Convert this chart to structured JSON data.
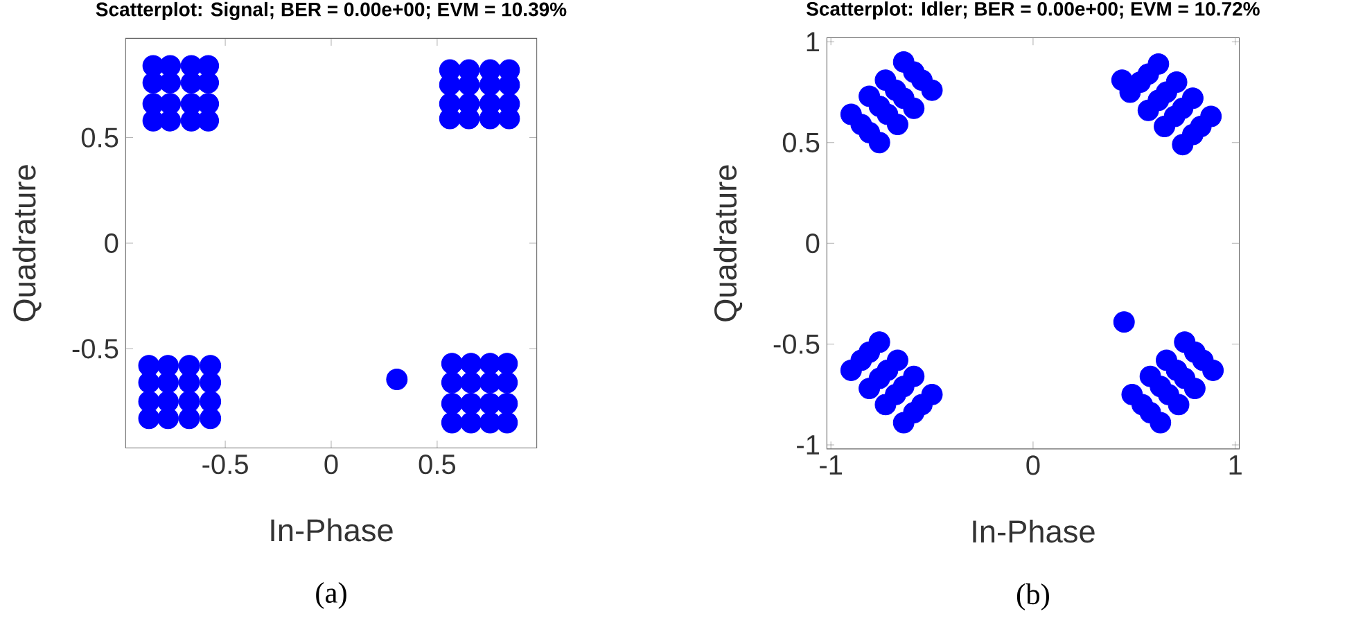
{
  "chart_data": [
    {
      "type": "scatter",
      "title": "Scatterplot: Signal; BER = 0.00e+00; EVM = 10.39%",
      "xlabel": "In-Phase",
      "ylabel": "Quadrature",
      "annotations": [
        "(a)"
      ],
      "xlim": [
        -0.97,
        0.97
      ],
      "ylim": [
        -0.97,
        0.97
      ],
      "xticks": [
        -0.5,
        0,
        0.5
      ],
      "yticks": [
        -0.5,
        0,
        0.5
      ],
      "series": [
        {
          "color": "#0000ff",
          "x": [
            -0.84,
            -0.76,
            -0.66,
            -0.58,
            -0.84,
            -0.76,
            -0.66,
            -0.58,
            -0.84,
            -0.76,
            -0.66,
            -0.58,
            -0.84,
            -0.76,
            -0.66,
            -0.58,
            0.56,
            0.65,
            0.75,
            0.84,
            0.56,
            0.65,
            0.75,
            0.84,
            0.56,
            0.65,
            0.75,
            0.84,
            0.56,
            0.65,
            0.75,
            0.84,
            -0.86,
            -0.77,
            -0.67,
            -0.57,
            -0.86,
            -0.77,
            -0.67,
            -0.57,
            -0.86,
            -0.77,
            -0.67,
            -0.57,
            -0.86,
            -0.77,
            -0.67,
            -0.57,
            0.57,
            0.66,
            0.75,
            0.83,
            0.57,
            0.66,
            0.75,
            0.83,
            0.57,
            0.66,
            0.75,
            0.83,
            0.57,
            0.66,
            0.75,
            0.83,
            0.31
          ],
          "values": [
            0.84,
            0.84,
            0.84,
            0.84,
            0.76,
            0.76,
            0.76,
            0.76,
            0.66,
            0.66,
            0.66,
            0.66,
            0.58,
            0.58,
            0.58,
            0.58,
            0.82,
            0.82,
            0.82,
            0.82,
            0.75,
            0.75,
            0.75,
            0.75,
            0.66,
            0.66,
            0.66,
            0.66,
            0.59,
            0.59,
            0.59,
            0.59,
            -0.58,
            -0.58,
            -0.58,
            -0.58,
            -0.66,
            -0.66,
            -0.66,
            -0.66,
            -0.75,
            -0.75,
            -0.75,
            -0.75,
            -0.83,
            -0.83,
            -0.83,
            -0.83,
            -0.57,
            -0.57,
            -0.57,
            -0.57,
            -0.66,
            -0.66,
            -0.66,
            -0.66,
            -0.76,
            -0.76,
            -0.76,
            -0.76,
            -0.85,
            -0.85,
            -0.85,
            -0.85,
            -0.645
          ]
        }
      ]
    },
    {
      "type": "scatter",
      "title": "Scatterplot: Idler; BER = 0.00e+00; EVM = 10.72%",
      "xlabel": "In-Phase",
      "ylabel": "Quadrature",
      "annotations": [
        "(b)"
      ],
      "xlim": [
        -1.02,
        1.02
      ],
      "ylim": [
        -1.02,
        1.02
      ],
      "xticks": [
        -1,
        0,
        1
      ],
      "yticks": [
        -1,
        -0.5,
        0,
        0.5,
        1
      ],
      "series": [
        {
          "color": "#0000ff",
          "x": [
            -0.76,
            -0.81,
            -0.85,
            -0.9,
            -0.67,
            -0.72,
            -0.76,
            -0.81,
            -0.59,
            -0.64,
            -0.68,
            -0.73,
            -0.5,
            -0.55,
            -0.59,
            -0.64,
            0.74,
            0.79,
            0.83,
            0.88,
            0.65,
            0.7,
            0.74,
            0.79,
            0.57,
            0.62,
            0.66,
            0.71,
            0.48,
            0.53,
            0.57,
            0.62,
            0.44,
            -0.64,
            -0.59,
            -0.55,
            -0.5,
            -0.73,
            -0.68,
            -0.64,
            -0.59,
            -0.81,
            -0.76,
            -0.72,
            -0.67,
            -0.9,
            -0.85,
            -0.81,
            -0.76,
            0.63,
            0.58,
            0.54,
            0.49,
            0.72,
            0.67,
            0.63,
            0.58,
            0.8,
            0.75,
            0.71,
            0.66,
            0.89,
            0.84,
            0.8,
            0.75,
            0.45
          ],
          "values": [
            0.5,
            0.55,
            0.59,
            0.64,
            0.59,
            0.64,
            0.68,
            0.73,
            0.67,
            0.72,
            0.76,
            0.81,
            0.76,
            0.81,
            0.85,
            0.9,
            0.49,
            0.54,
            0.58,
            0.63,
            0.58,
            0.63,
            0.67,
            0.72,
            0.66,
            0.71,
            0.75,
            0.8,
            0.75,
            0.8,
            0.84,
            0.89,
            0.81,
            -0.89,
            -0.84,
            -0.8,
            -0.75,
            -0.8,
            -0.75,
            -0.71,
            -0.66,
            -0.72,
            -0.67,
            -0.63,
            -0.58,
            -0.63,
            -0.58,
            -0.54,
            -0.49,
            -0.89,
            -0.84,
            -0.8,
            -0.75,
            -0.8,
            -0.75,
            -0.71,
            -0.66,
            -0.72,
            -0.67,
            -0.63,
            -0.58,
            -0.63,
            -0.58,
            -0.54,
            -0.49,
            -0.39
          ]
        }
      ]
    }
  ]
}
